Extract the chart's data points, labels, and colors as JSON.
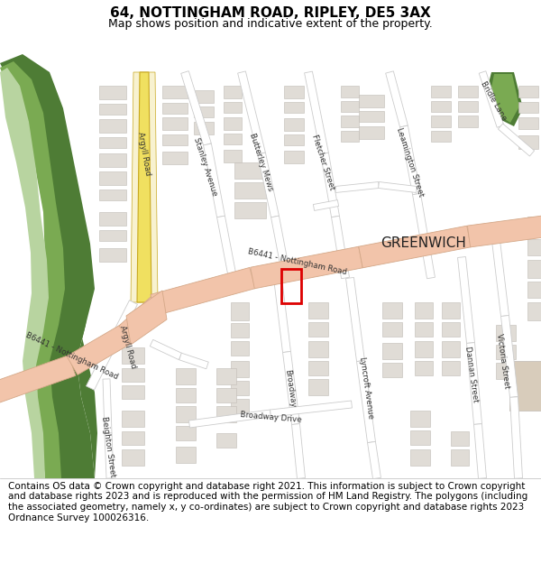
{
  "title": "64, NOTTINGHAM ROAD, RIPLEY, DE5 3AX",
  "subtitle": "Map shows position and indicative extent of the property.",
  "footer": "Contains OS data © Crown copyright and database right 2021. This information is subject to Crown copyright and database rights 2023 and is reproduced with the permission of HM Land Registry. The polygons (including the associated geometry, namely x, y co-ordinates) are subject to Crown copyright and database rights 2023 Ordnance Survey 100026316.",
  "background_color": "#ffffff",
  "map_bg": "#f0ede8",
  "road_main_color": "#f2c4aa",
  "road_outline_color": "#d4a888",
  "road_white_color": "#ffffff",
  "road_white_outline": "#cccccc",
  "building_color": "#e0dcd6",
  "building_outline": "#c0bbb5",
  "green_dark": "#4e7c35",
  "green_mid": "#7aaa52",
  "green_light": "#b8d4a0",
  "yellow_road": "#f0e060",
  "yellow_road_outline": "#c8a820",
  "highlight_color": "#dd0000",
  "text_color": "#000000",
  "road_label_color": "#333333",
  "greenwich_label_color": "#222222",
  "fig_width": 6.0,
  "fig_height": 6.25,
  "title_fontsize": 11,
  "subtitle_fontsize": 9,
  "footer_fontsize": 7.5,
  "road_label_fontsize": 6.2,
  "greenwich_fontsize": 11
}
